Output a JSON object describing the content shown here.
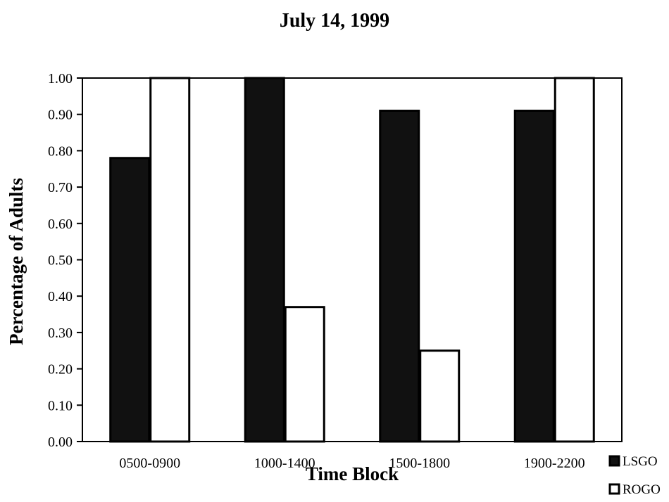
{
  "chart_data": {
    "type": "bar",
    "title": "July 14, 1999",
    "xlabel": "Time Block",
    "ylabel": "Percentage of Adults",
    "categories": [
      "0500-0900",
      "1000-1400",
      "1500-1800",
      "1900-2200"
    ],
    "series": [
      {
        "name": "LSGO",
        "values": [
          0.78,
          1.0,
          0.91,
          0.91
        ]
      },
      {
        "name": "ROGO",
        "values": [
          1.0,
          0.37,
          0.25,
          1.0
        ]
      }
    ],
    "ylim": [
      0,
      1
    ],
    "yticks": [
      "0.00",
      "0.10",
      "0.20",
      "0.30",
      "0.40",
      "0.50",
      "0.60",
      "0.70",
      "0.80",
      "0.90",
      "1.00"
    ],
    "grid": false,
    "legend_position": "bottom-right",
    "colors": {
      "LSGO": "#111111",
      "ROGO": "#ffffff",
      "outline": "#000000"
    }
  }
}
